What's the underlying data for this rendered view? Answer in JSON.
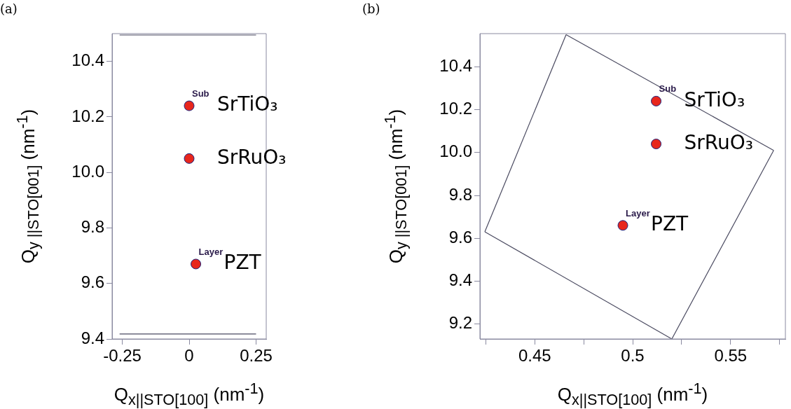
{
  "chart_data": [
    {
      "type": "scatter",
      "title": "(a)",
      "xlabel": "Q$_{x||STO[100]}$ (nm$^{-1}$)",
      "ylabel": "Q$_{y ||STO[001]}$ (nm$^{-1}$)",
      "xlim": [
        -0.288,
        0.288
      ],
      "xticks": [
        -0.25,
        0,
        0.25
      ],
      "ylim": [
        9.4,
        10.5
      ],
      "yticks": [
        9.4,
        9.6,
        9.8,
        {
          "value": 10,
          "label": "10.0"
        },
        10.2,
        10.4
      ],
      "grid": false,
      "legend": false,
      "marker": "circle",
      "series": [
        {
          "name": "SrTiO₃",
          "color": "#e8261c",
          "x": [
            0
          ],
          "values": [
            10.24
          ]
        },
        {
          "name": "SrRuO₃",
          "color": "#e8261c",
          "x": [
            0
          ],
          "values": [
            10.05
          ]
        },
        {
          "name": "PZT",
          "color": "#e8261c",
          "x": [
            0.025
          ],
          "values": [
            9.67
          ]
        },
        {
          "type": "line",
          "marker": "none",
          "color": "#4a4a60",
          "x": [
            -0.26,
            0.25
          ],
          "values": [
            10.495,
            10.495
          ]
        },
        {
          "type": "line",
          "marker": "none",
          "color": "#4a4a60",
          "x": [
            -0.26,
            0.25
          ],
          "values": [
            9.418,
            9.418
          ]
        }
      ],
      "annotations": [
        {
          "text": "Sub",
          "x": 0,
          "y": 10.24
        },
        {
          "text": "Layer",
          "x": 0.025,
          "y": 9.67
        }
      ]
    },
    {
      "type": "scatter",
      "title": "(b)",
      "xlabel": "Q$_{x||STO[100]}$ (nm$^{-1}$)",
      "ylabel": "Q$_{y ||STO[001]}$ (nm$^{-1}$)",
      "xlim": [
        0.422,
        0.578
      ],
      "xticks": [
        {
          "value": 0.425,
          "label": null
        },
        0.45,
        {
          "value": 0.475,
          "label": null
        },
        0.5,
        {
          "value": 0.525,
          "label": null
        },
        0.55,
        {
          "value": 0.575,
          "label": null
        }
      ],
      "ylim": [
        9.13,
        10.555
      ],
      "yticks": [
        9.2,
        9.4,
        9.6,
        9.8,
        {
          "value": 10,
          "label": "10.0"
        },
        10.2,
        10.4
      ],
      "grid": false,
      "legend": false,
      "marker": "circle",
      "series": [
        {
          "name": "SrTiO₃",
          "color": "#e8261c",
          "x": [
            0.512
          ],
          "values": [
            10.24
          ]
        },
        {
          "name": "SrRuO₃",
          "color": "#e8261c",
          "x": [
            0.512
          ],
          "values": [
            10.04
          ]
        },
        {
          "name": "PZT",
          "color": "#e8261c",
          "x": [
            0.495
          ],
          "values": [
            9.66
          ]
        },
        {
          "type": "line",
          "marker": "none",
          "color": "#4a4a60",
          "x": [
            0.466,
            0.572
          ],
          "values": [
            10.55,
            10.01
          ]
        },
        {
          "type": "line",
          "marker": "none",
          "color": "#4a4a60",
          "x": [
            0.52,
            0.572
          ],
          "values": [
            9.13,
            10.01
          ]
        },
        {
          "type": "line",
          "marker": "none",
          "color": "#4a4a60",
          "x": [
            0.4245,
            0.52
          ],
          "values": [
            9.63,
            9.13
          ]
        },
        {
          "type": "line",
          "marker": "none",
          "color": "#4a4a60",
          "x": [
            0.4245,
            0.466
          ],
          "values": [
            9.63,
            10.55
          ]
        }
      ],
      "annotations": [
        {
          "text": "Sub",
          "x": 0.512,
          "y": 10.24
        },
        {
          "text": "Layer",
          "x": 0.495,
          "y": 9.66
        }
      ]
    }
  ]
}
